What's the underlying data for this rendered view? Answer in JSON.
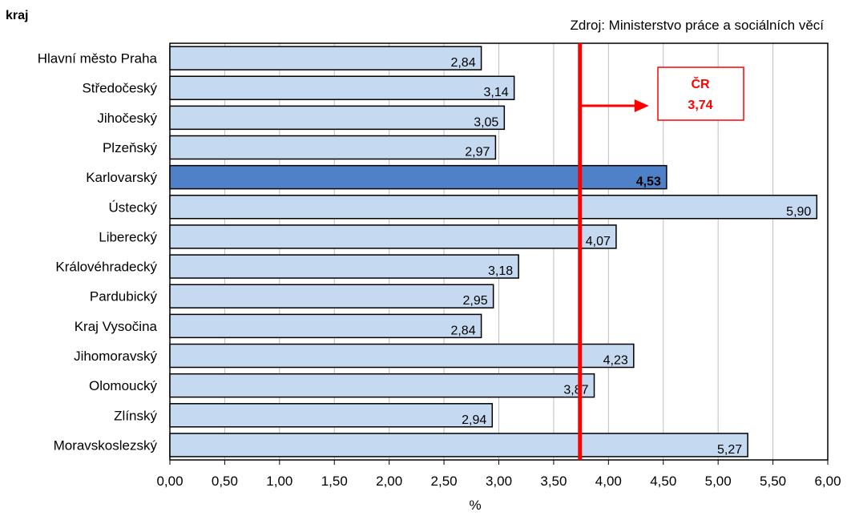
{
  "chart_data": {
    "type": "bar",
    "orientation": "horizontal",
    "y_axis_title": "kraj",
    "source": "Zdroj: Ministerstvo práce a sociálních věcí",
    "xlabel": "%",
    "xlim": [
      0,
      6
    ],
    "x_ticks": [
      "0,00",
      "0,50",
      "1,00",
      "1,50",
      "2,00",
      "2,50",
      "3,00",
      "3,50",
      "4,00",
      "4,50",
      "5,00",
      "5,50",
      "6,00"
    ],
    "grid": "vertical",
    "categories": [
      "Hlavní město Praha",
      "Středočeský",
      "Jihočeský",
      "Plzeňský",
      "Karlovarský",
      "Ústecký",
      "Liberecký",
      "Královéhradecký",
      "Pardubický",
      "Kraj Vysočina",
      "Jihomoravský",
      "Olomoucký",
      "Zlínský",
      "Moravskoslezský"
    ],
    "values": [
      2.84,
      3.14,
      3.05,
      2.97,
      4.53,
      5.9,
      4.07,
      3.18,
      2.95,
      2.84,
      4.23,
      3.87,
      2.94,
      5.27
    ],
    "value_labels": [
      "2,84",
      "3,14",
      "3,05",
      "2,97",
      "4,53",
      "5,90",
      "4,07",
      "3,18",
      "2,95",
      "2,84",
      "4,23",
      "3,87",
      "2,94",
      "5,27"
    ],
    "highlight_category": "Karlovarský",
    "reference_line": {
      "value": 3.74,
      "label_line1": "ČR",
      "label_line2": "3,74"
    },
    "colors": {
      "bar": "#c5d9f1",
      "highlight": "#4f81c9",
      "reference": "#ff0000",
      "grid": "#bfbfbf"
    }
  }
}
